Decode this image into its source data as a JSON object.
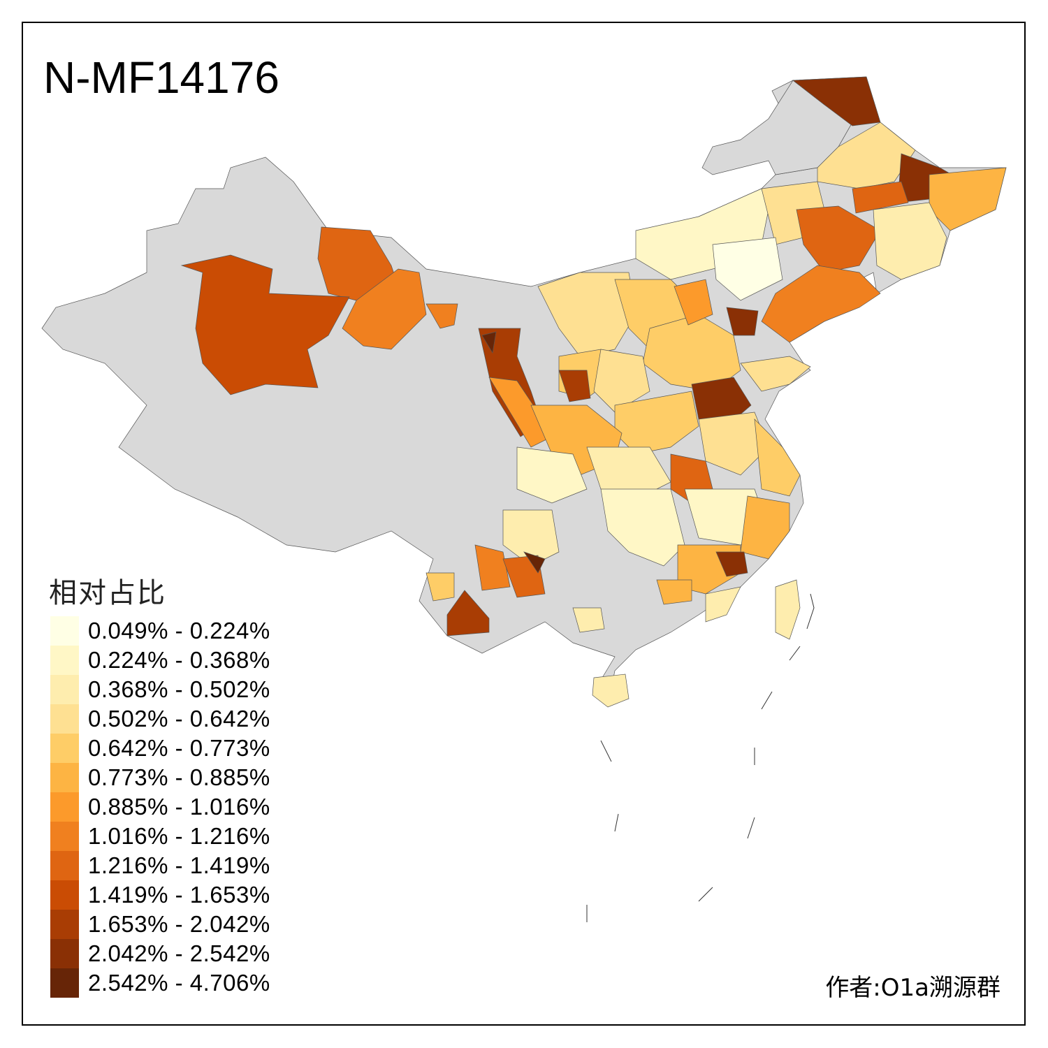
{
  "title": "N-MF14176",
  "legend": {
    "title": "相对占比",
    "classes": [
      {
        "label": "0.049% - 0.224%",
        "color": "#FFFFE5"
      },
      {
        "label": "0.224% - 0.368%",
        "color": "#FFF7C6"
      },
      {
        "label": "0.368% - 0.502%",
        "color": "#FEEDAE"
      },
      {
        "label": "0.502% - 0.642%",
        "color": "#FEE092"
      },
      {
        "label": "0.642% - 0.773%",
        "color": "#FECD67"
      },
      {
        "label": "0.773% - 0.885%",
        "color": "#FDB443"
      },
      {
        "label": "0.885% - 1.016%",
        "color": "#FC9A2B"
      },
      {
        "label": "1.016% - 1.216%",
        "color": "#F0801F"
      },
      {
        "label": "1.216% - 1.419%",
        "color": "#DF6512"
      },
      {
        "label": "1.419% - 1.653%",
        "color": "#CA4C04"
      },
      {
        "label": "1.653% - 2.042%",
        "color": "#A93D04"
      },
      {
        "label": "2.042% - 2.542%",
        "color": "#8A3005"
      },
      {
        "label": "2.542% - 4.706%",
        "color": "#672507"
      }
    ]
  },
  "no_data_color": "#D9D9D9",
  "author": "作者:O1a溯源群"
}
